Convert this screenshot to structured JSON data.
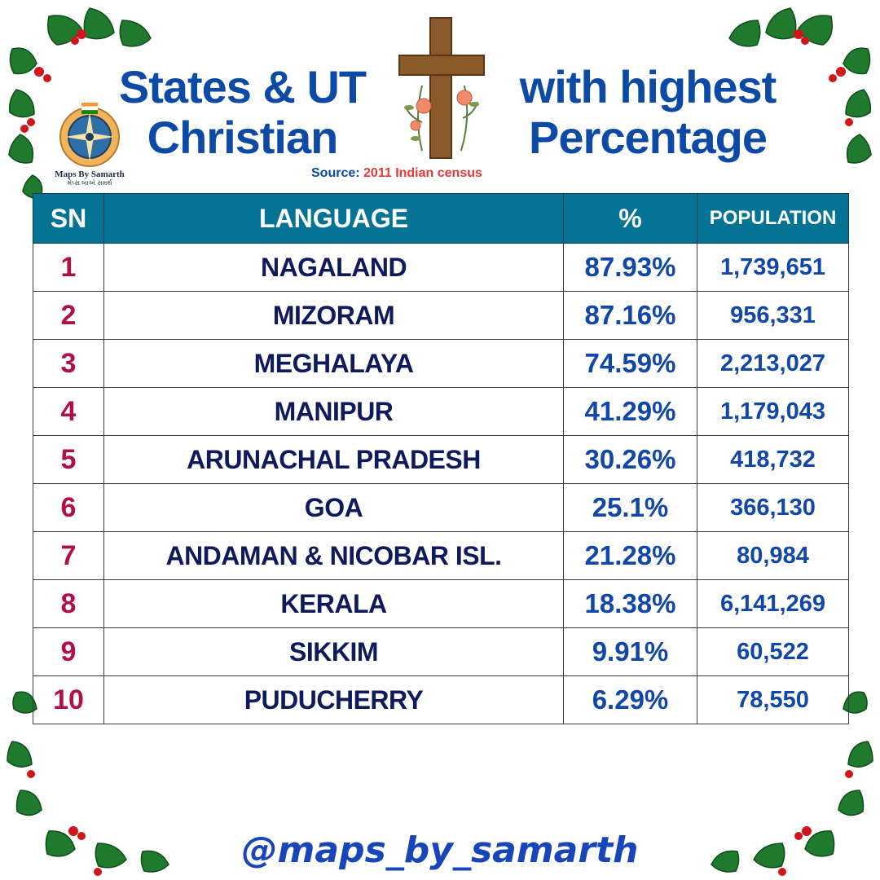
{
  "title": {
    "left_line1": "States & UT",
    "left_line2": "Christian",
    "right_line1": "with highest",
    "right_line2": "Percentage"
  },
  "source": {
    "label": "Source:",
    "value": "2011 Indian census"
  },
  "logo": {
    "name": "Maps By Samarth",
    "sub": "મેપ્સ બાએ સમર્થ"
  },
  "chart_data": {
    "type": "table",
    "columns": [
      "SN",
      "LANGUAGE",
      "%",
      "POPULATION"
    ],
    "rows": [
      {
        "sn": "1",
        "state": "NAGALAND",
        "percent": "87.93%",
        "population": "1,739,651"
      },
      {
        "sn": "2",
        "state": "MIZORAM",
        "percent": "87.16%",
        "population": "956,331"
      },
      {
        "sn": "3",
        "state": "MEGHALAYA",
        "percent": "74.59%",
        "population": "2,213,027"
      },
      {
        "sn": "4",
        "state": "MANIPUR",
        "percent": "41.29%",
        "population": "1,179,043"
      },
      {
        "sn": "5",
        "state": "ARUNACHAL PRADESH",
        "percent": "30.26%",
        "population": "418,732"
      },
      {
        "sn": "6",
        "state": "GOA",
        "percent": "25.1%",
        "population": "366,130"
      },
      {
        "sn": "7",
        "state": "ANDAMAN & NICOBAR ISL.",
        "percent": "21.28%",
        "population": "80,984"
      },
      {
        "sn": "8",
        "state": "KERALA",
        "percent": "18.38%",
        "population": "6,141,269"
      },
      {
        "sn": "9",
        "state": "SIKKIM",
        "percent": "9.91%",
        "population": "60,522"
      },
      {
        "sn": "10",
        "state": "PUDUCHERRY",
        "percent": "6.29%",
        "population": "78,550"
      }
    ]
  },
  "footer": {
    "handle": "@maps_by_samarth"
  },
  "colors": {
    "title": "#0d4aa6",
    "header_bg": "#057394",
    "sn_text": "#b0104a",
    "state_text": "#0e1a5c",
    "value_text": "#1147a8",
    "source_value": "#e53935",
    "holly_leaf": "#1f7a2e",
    "holly_berry": "#d0161b"
  },
  "icons": [
    "holly-decoration-icon",
    "cross-icon",
    "compass-logo-icon",
    "india-flag-icon"
  ]
}
